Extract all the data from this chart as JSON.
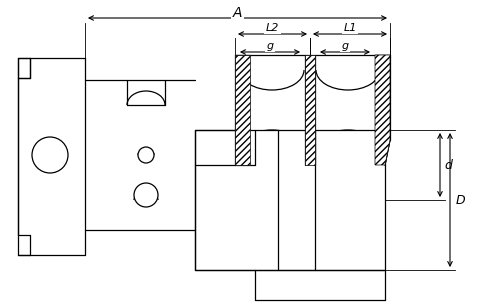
{
  "bg_color": "#ffffff",
  "line_color": "#000000",
  "lw": 0.9,
  "labels": {
    "A": "A",
    "L2": "L2",
    "L1": "L1",
    "g": "g",
    "d": "d",
    "D": "D"
  },
  "fig_width": 5.0,
  "fig_height": 3.07,
  "dpi": 100
}
